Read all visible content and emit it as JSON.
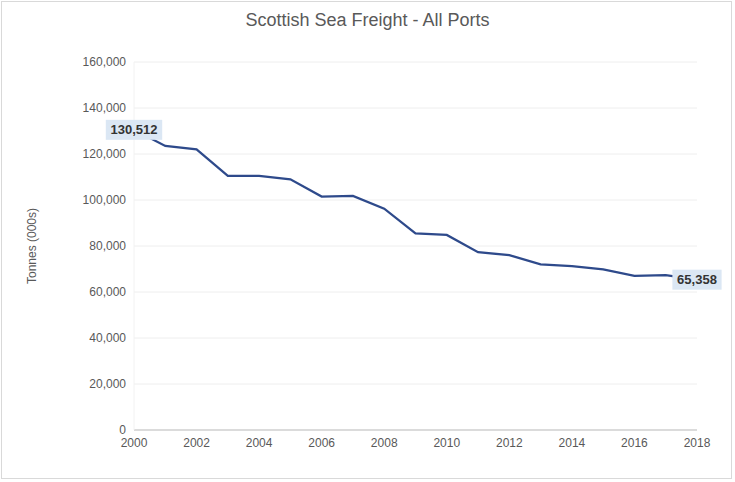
{
  "chart_data": {
    "type": "line",
    "title": "Scottish Sea Freight - All Ports",
    "y_label": "Tonnes (000s)",
    "x": [
      2000,
      2001,
      2002,
      2003,
      2004,
      2005,
      2006,
      2007,
      2008,
      2009,
      2010,
      2011,
      2012,
      2013,
      2014,
      2015,
      2016,
      2017,
      2018
    ],
    "values": [
      130512,
      123500,
      122000,
      110500,
      110500,
      109000,
      101500,
      101800,
      96200,
      85500,
      84800,
      77300,
      76000,
      72000,
      71200,
      69800,
      67000,
      67300,
      65358
    ],
    "value_labels": [
      "130,512",
      null,
      null,
      null,
      null,
      null,
      null,
      null,
      null,
      null,
      null,
      null,
      null,
      null,
      null,
      null,
      null,
      null,
      "65,358"
    ],
    "color": "#2e4a8b",
    "xlim": [
      2000,
      2018
    ],
    "xticks": [
      2000,
      2002,
      2004,
      2006,
      2008,
      2010,
      2012,
      2014,
      2016,
      2018
    ],
    "ylim": [
      0,
      160000
    ],
    "yticks": [
      0,
      {
        "value": 20000,
        "label": "20,000"
      },
      {
        "value": 40000,
        "label": "40,000"
      },
      {
        "value": 60000,
        "label": "60,000"
      },
      {
        "value": 80000,
        "label": "80,000"
      },
      {
        "value": 100000,
        "label": "100,000"
      },
      {
        "value": 120000,
        "label": "120,000"
      },
      {
        "value": 140000,
        "label": "140,000"
      },
      {
        "value": 160000,
        "label": "160,000"
      }
    ],
    "grid": true
  }
}
